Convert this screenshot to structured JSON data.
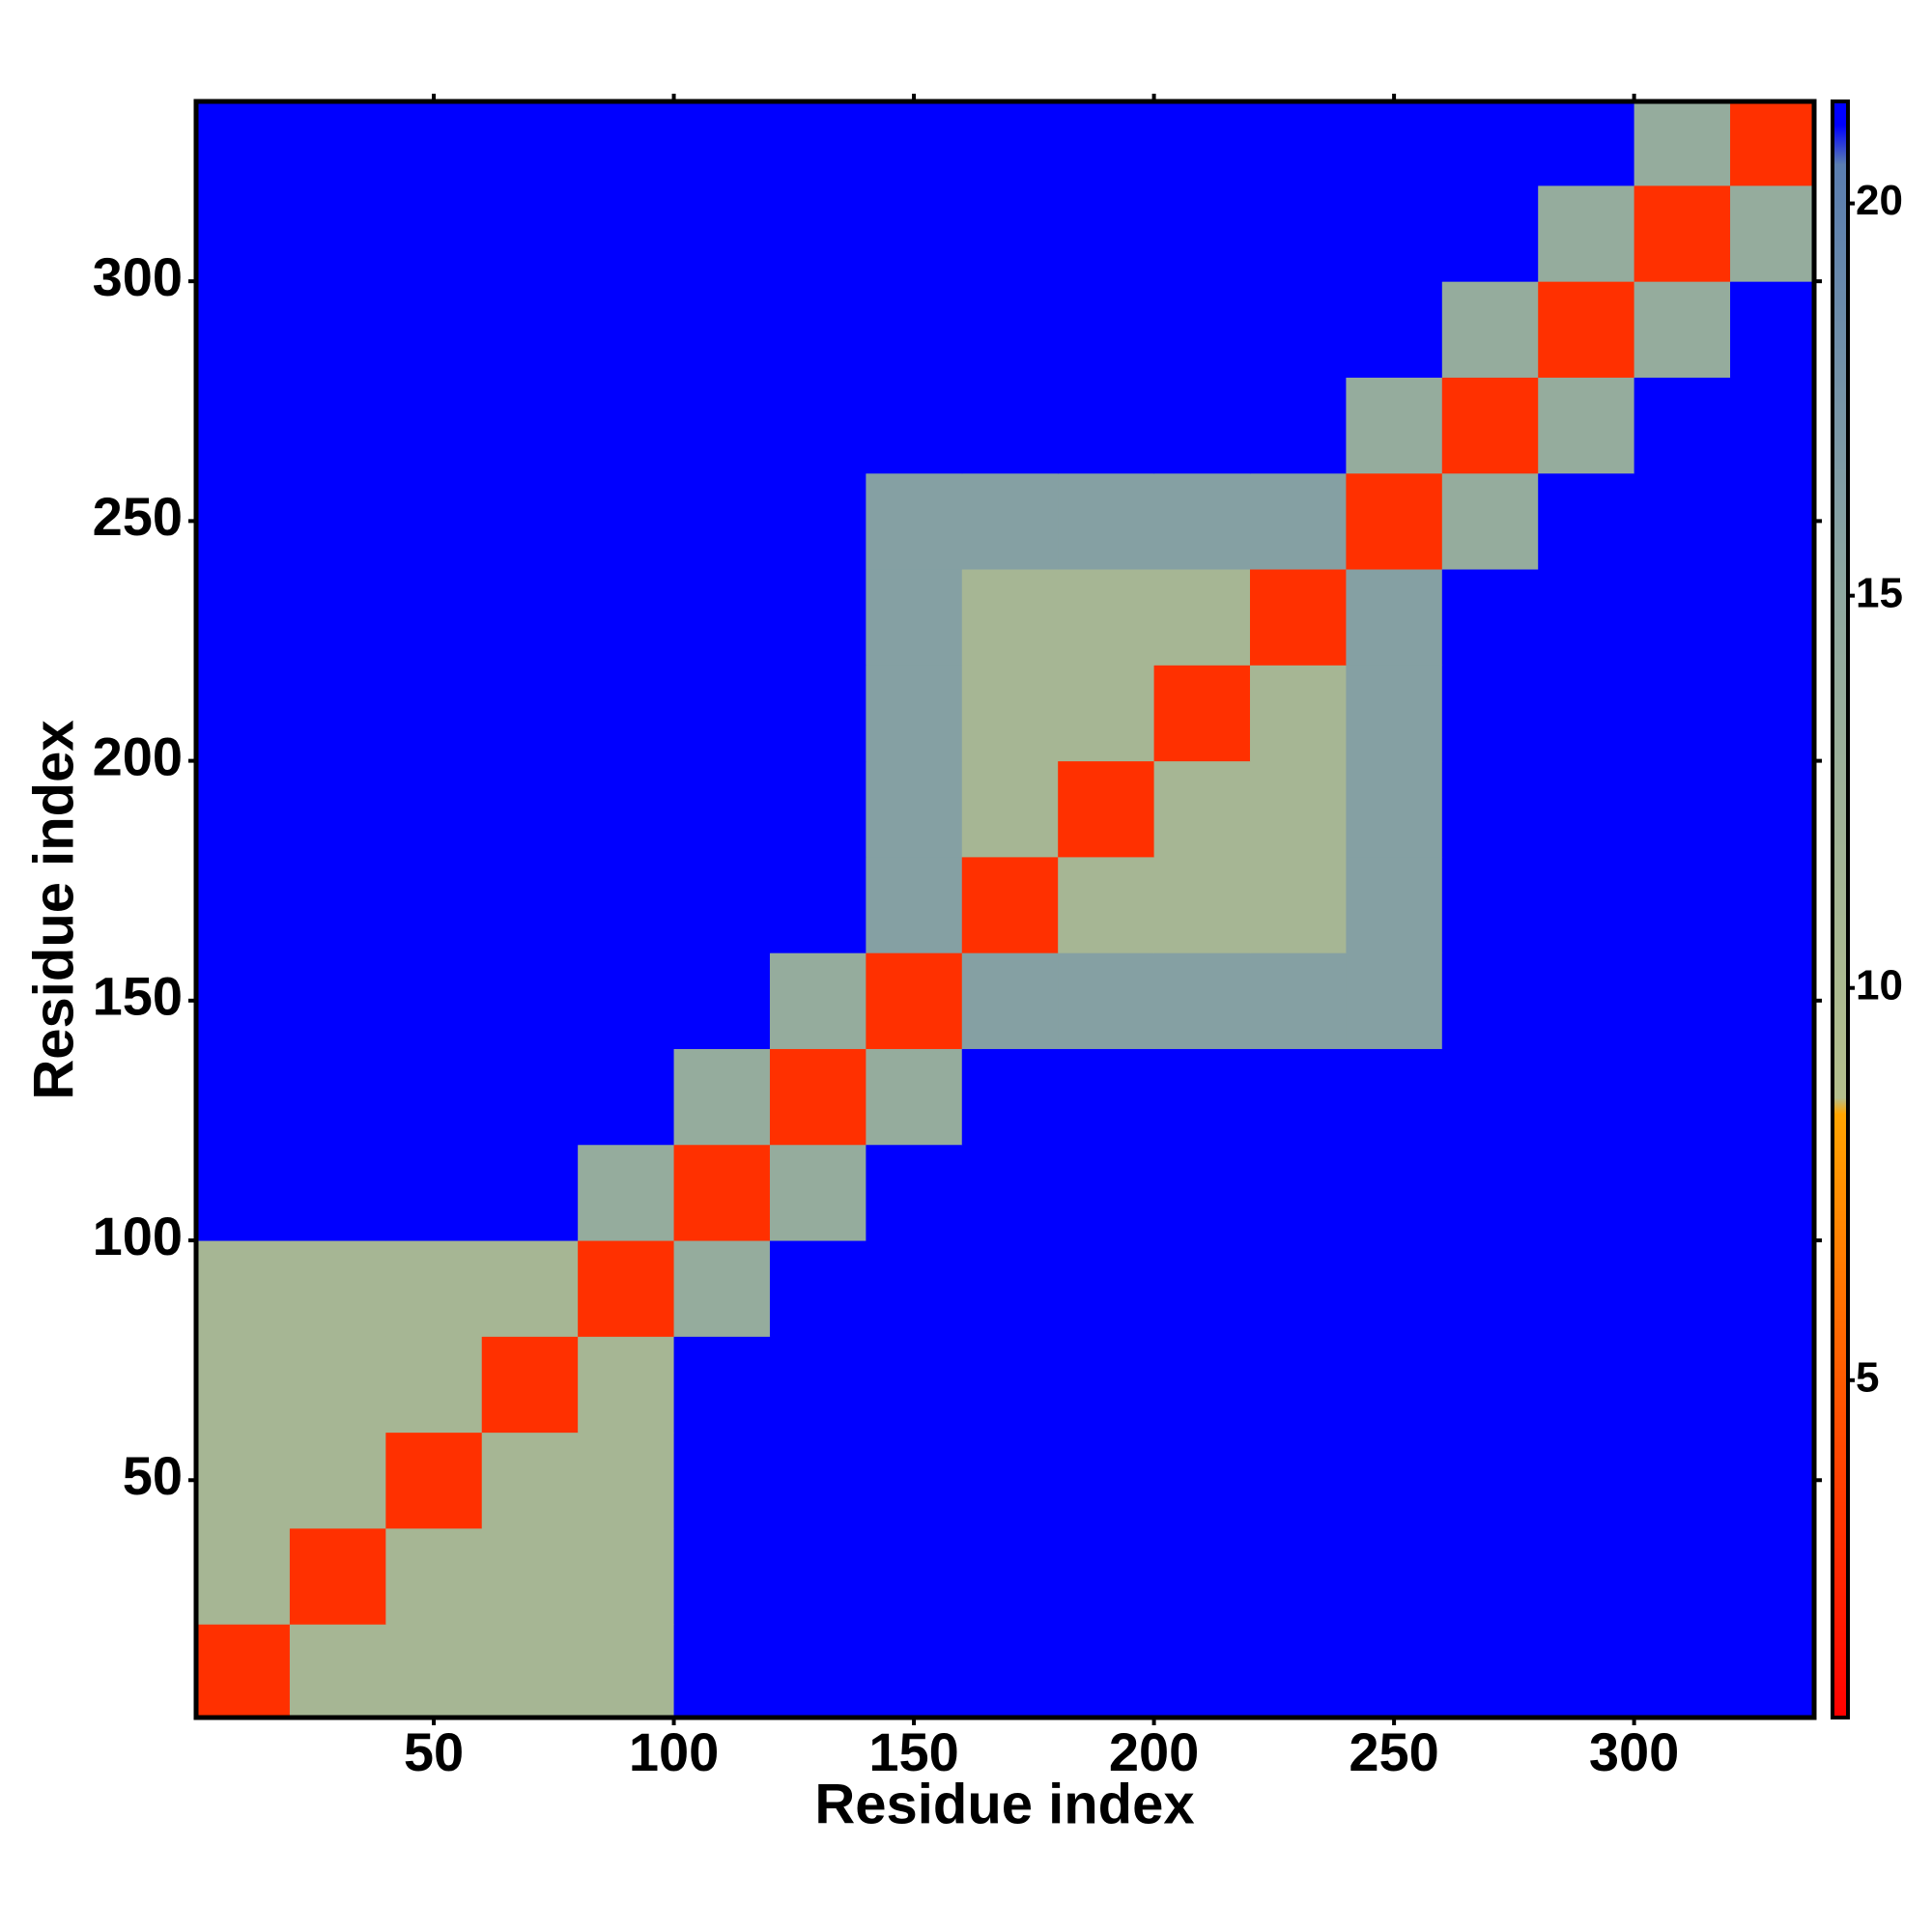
{
  "chart_data": {
    "type": "heatmap",
    "x_label": "Residue index",
    "y_label": "Residue index",
    "xlim": [
      0.5,
      337.5
    ],
    "ylim": [
      0.5,
      337.5
    ],
    "xticks": [
      50,
      100,
      150,
      200,
      250,
      300
    ],
    "yticks": [
      50,
      100,
      150,
      200,
      250,
      300
    ],
    "xbins": [
      0,
      20,
      40,
      60,
      80,
      100,
      120,
      140,
      160,
      180,
      200,
      220,
      240,
      260,
      280,
      300,
      320,
      340
    ],
    "ybins": [
      0,
      20,
      40,
      60,
      80,
      100,
      120,
      140,
      160,
      180,
      200,
      220,
      240,
      260,
      280,
      300,
      320,
      340
    ],
    "z": [
      [
        3,
        11,
        11,
        11,
        11,
        21,
        21,
        21,
        21,
        21,
        21,
        21,
        21,
        21,
        21,
        21,
        21
      ],
      [
        11,
        3,
        11,
        11,
        11,
        21,
        21,
        21,
        21,
        21,
        21,
        21,
        21,
        21,
        21,
        21,
        21
      ],
      [
        11,
        11,
        3,
        11,
        11,
        21,
        21,
        21,
        21,
        21,
        21,
        21,
        21,
        21,
        21,
        21,
        21
      ],
      [
        11,
        11,
        11,
        3,
        11,
        21,
        21,
        21,
        21,
        21,
        21,
        21,
        21,
        21,
        21,
        21,
        21
      ],
      [
        11,
        11,
        11,
        11,
        3,
        14,
        21,
        21,
        21,
        21,
        21,
        21,
        21,
        21,
        21,
        21,
        21
      ],
      [
        21,
        21,
        21,
        21,
        14,
        3,
        14,
        21,
        21,
        21,
        21,
        21,
        21,
        21,
        21,
        21,
        21
      ],
      [
        21,
        21,
        21,
        21,
        21,
        14,
        3,
        14,
        21,
        21,
        21,
        21,
        21,
        21,
        21,
        21,
        21
      ],
      [
        21,
        21,
        21,
        21,
        21,
        21,
        14,
        3,
        16,
        16,
        16,
        16,
        16,
        21,
        21,
        21,
        21
      ],
      [
        21,
        21,
        21,
        21,
        21,
        21,
        21,
        16,
        3,
        11,
        11,
        11,
        16,
        21,
        21,
        21,
        21
      ],
      [
        21,
        21,
        21,
        21,
        21,
        21,
        21,
        16,
        11,
        3,
        11,
        11,
        16,
        21,
        21,
        21,
        21
      ],
      [
        21,
        21,
        21,
        21,
        21,
        21,
        21,
        16,
        11,
        11,
        3,
        11,
        16,
        21,
        21,
        21,
        21
      ],
      [
        21,
        21,
        21,
        21,
        21,
        21,
        21,
        16,
        11,
        11,
        11,
        3,
        16,
        21,
        21,
        21,
        21
      ],
      [
        21,
        21,
        21,
        21,
        21,
        21,
        21,
        16,
        16,
        16,
        16,
        16,
        3,
        14,
        21,
        21,
        21
      ],
      [
        21,
        21,
        21,
        21,
        21,
        21,
        21,
        21,
        21,
        21,
        21,
        21,
        14,
        3,
        14,
        21,
        21
      ],
      [
        21,
        21,
        21,
        21,
        21,
        21,
        21,
        21,
        21,
        21,
        21,
        21,
        21,
        14,
        3,
        14,
        21
      ],
      [
        21,
        21,
        21,
        21,
        21,
        21,
        21,
        21,
        21,
        21,
        21,
        21,
        21,
        21,
        14,
        3,
        14
      ],
      [
        21,
        21,
        21,
        21,
        21,
        21,
        21,
        21,
        21,
        21,
        21,
        21,
        21,
        21,
        21,
        14,
        3
      ]
    ],
    "zlim": [
      0.7,
      21.3
    ],
    "zticks": [
      5,
      10,
      15,
      20
    ],
    "colorscale": [
      {
        "value": 0.7,
        "color": "#ff0000"
      },
      {
        "value": 5,
        "color": "#ff5a00"
      },
      {
        "value": 8.4,
        "color": "#ffa500"
      },
      {
        "value": 8.6,
        "color": "#b4bf8c"
      },
      {
        "value": 15,
        "color": "#8fa8a0"
      },
      {
        "value": 20.5,
        "color": "#5a7db0"
      },
      {
        "value": 21,
        "color": "#0000ff"
      },
      {
        "value": 21.3,
        "color": "#0000ff"
      }
    ]
  }
}
